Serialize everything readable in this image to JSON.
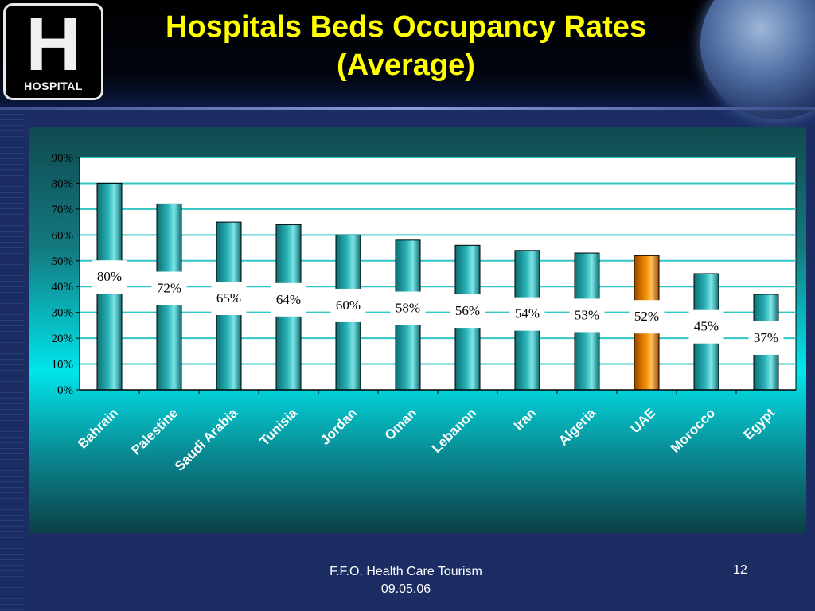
{
  "slide": {
    "title_line1": "Hospitals Beds Occupancy Rates",
    "title_line2": "(Average)",
    "logo_letter": "H",
    "logo_word": "HOSPITAL",
    "footer_line1": "F.F.O.   Health Care Tourism",
    "footer_line2": "09.05.06",
    "page_number": "12"
  },
  "colors": {
    "title": "#ffff00",
    "bar_default": "#2ab3b8",
    "bar_highlight": "#f08a00",
    "gridline": "#33c6c6"
  },
  "chart_data": {
    "type": "bar",
    "categories": [
      "Bahrain",
      "Palestine",
      "Saudi Arabia",
      "Tunisia",
      "Jordan",
      "Oman",
      "Lebanon",
      "Iran",
      "Algeria",
      "UAE",
      "Morocco",
      "Egypt"
    ],
    "values": [
      80,
      72,
      65,
      64,
      60,
      58,
      56,
      54,
      53,
      52,
      45,
      37
    ],
    "data_labels": [
      "80%",
      "72%",
      "65%",
      "64%",
      "60%",
      "58%",
      "56%",
      "54%",
      "53%",
      "52%",
      "45%",
      "37%"
    ],
    "highlight_category": "UAE",
    "yticks": [
      "0%",
      "10%",
      "20%",
      "30%",
      "40%",
      "50%",
      "60%",
      "70%",
      "80%",
      "90%"
    ],
    "ylim": [
      0,
      90
    ],
    "grid": true,
    "legend": false
  }
}
